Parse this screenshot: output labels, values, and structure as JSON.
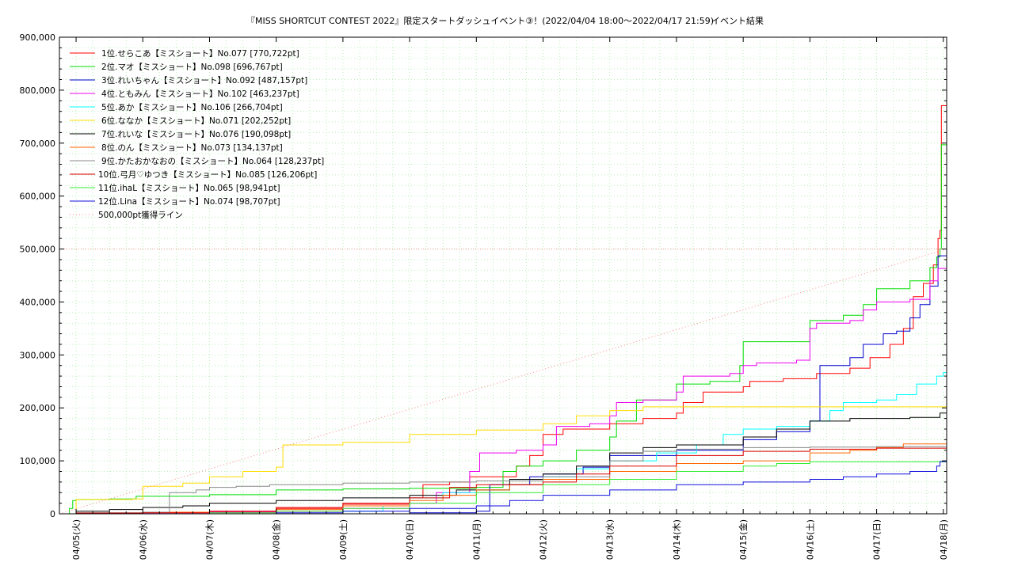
{
  "chart_data": {
    "type": "line",
    "title": "『MISS SHORTCUT CONTEST 2022』限定スタートダッシュイベント③！(2022/04/04 18:00〜2022/04/17 21:59)",
    "title_suffix": "イベント結果",
    "xlabel": "",
    "ylabel": "",
    "x_ticks": [
      "04/05(火)",
      "04/06(水)",
      "04/07(木)",
      "04/08(金)",
      "04/09(土)",
      "04/10(日)",
      "04/11(月)",
      "04/12(火)",
      "04/13(水)",
      "04/14(木)",
      "04/15(金)",
      "04/16(土)",
      "04/17(日)",
      "04/18(月)"
    ],
    "xlim_days": [
      -0.25,
      13.05
    ],
    "ylim": [
      0,
      900000
    ],
    "y_ticks": [
      "0",
      "100,000",
      "200,000",
      "300,000",
      "400,000",
      "500,000",
      "600,000",
      "700,000",
      "800,000",
      "900,000"
    ],
    "y_tick_values": [
      0,
      100000,
      200000,
      300000,
      400000,
      500000,
      600000,
      700000,
      800000,
      900000
    ],
    "grid": true,
    "legend_position": "top-left",
    "series": [
      {
        "name": "1位.せらこあ【ミスショート】No.077 [770,722pt]",
        "color": "#ff0000",
        "points": [
          [
            -0.25,
            0
          ],
          [
            0,
            2000
          ],
          [
            1,
            3000
          ],
          [
            2,
            5000
          ],
          [
            3,
            10000
          ],
          [
            4,
            18000
          ],
          [
            5,
            30000
          ],
          [
            5.2,
            55000
          ],
          [
            5.6,
            60000
          ],
          [
            5.9,
            70000
          ],
          [
            6.5,
            70000
          ],
          [
            6.6,
            90000
          ],
          [
            6.8,
            110000
          ],
          [
            7,
            150000
          ],
          [
            7.3,
            160000
          ],
          [
            7.8,
            160000
          ],
          [
            8,
            170000
          ],
          [
            8.5,
            180000
          ],
          [
            9,
            190000
          ],
          [
            9.1,
            210000
          ],
          [
            9.4,
            230000
          ],
          [
            10,
            240000
          ],
          [
            10.1,
            250000
          ],
          [
            10.6,
            255000
          ],
          [
            11.1,
            265000
          ],
          [
            11.6,
            275000
          ],
          [
            11.9,
            295000
          ],
          [
            12.2,
            320000
          ],
          [
            12.4,
            350000
          ],
          [
            12.55,
            410000
          ],
          [
            12.7,
            435000
          ],
          [
            12.85,
            470000
          ],
          [
            12.92,
            520000
          ],
          [
            12.95,
            535000
          ],
          [
            12.97,
            770722
          ],
          [
            13.05,
            770722
          ]
        ]
      },
      {
        "name": "2位.マオ【ミスショート】No.098 [696,767pt]",
        "color": "#00dd00",
        "points": [
          [
            -0.25,
            0
          ],
          [
            -0.1,
            10000
          ],
          [
            -0.05,
            25000
          ],
          [
            0,
            27000
          ],
          [
            0.5,
            28000
          ],
          [
            0.9,
            33000
          ],
          [
            2,
            36000
          ],
          [
            3,
            45000
          ],
          [
            4,
            47000
          ],
          [
            5,
            48000
          ],
          [
            6,
            50000
          ],
          [
            6.4,
            80000
          ],
          [
            6.6,
            90000
          ],
          [
            7,
            100000
          ],
          [
            7.5,
            120000
          ],
          [
            8,
            145000
          ],
          [
            8.1,
            175000
          ],
          [
            8.4,
            215000
          ],
          [
            9,
            245000
          ],
          [
            9.5,
            250000
          ],
          [
            9.95,
            280000
          ],
          [
            10,
            325000
          ],
          [
            10.9,
            325000
          ],
          [
            11,
            365000
          ],
          [
            11.5,
            375000
          ],
          [
            11.8,
            395000
          ],
          [
            12,
            425000
          ],
          [
            12.5,
            440000
          ],
          [
            12.8,
            465000
          ],
          [
            12.9,
            485000
          ],
          [
            12.95,
            500000
          ],
          [
            12.97,
            696767
          ],
          [
            13.05,
            696767
          ]
        ]
      },
      {
        "name": "3位.れいちゃん【ミスショート】No.092 [487,157pt]",
        "color": "#0000cc",
        "points": [
          [
            -0.25,
            0
          ],
          [
            0,
            0
          ],
          [
            5,
            2000
          ],
          [
            6,
            5000
          ],
          [
            6.2,
            55000
          ],
          [
            6.8,
            70000
          ],
          [
            7,
            75000
          ],
          [
            7.6,
            88000
          ],
          [
            8,
            110000
          ],
          [
            9,
            120000
          ],
          [
            10,
            140000
          ],
          [
            10.5,
            155000
          ],
          [
            11,
            175000
          ],
          [
            11.15,
            280000
          ],
          [
            11.6,
            295000
          ],
          [
            11.8,
            320000
          ],
          [
            12.1,
            340000
          ],
          [
            12.3,
            345000
          ],
          [
            12.5,
            370000
          ],
          [
            12.65,
            395000
          ],
          [
            12.8,
            430000
          ],
          [
            12.92,
            487157
          ],
          [
            13.05,
            487157
          ]
        ]
      },
      {
        "name": "4位.ともみん【ミスショート】No.102 [463,237pt]",
        "color": "#ee00ee",
        "points": [
          [
            -0.25,
            0
          ],
          [
            0,
            0
          ],
          [
            1,
            2000
          ],
          [
            2,
            3000
          ],
          [
            3,
            5000
          ],
          [
            4,
            10000
          ],
          [
            5,
            20000
          ],
          [
            5.4,
            40000
          ],
          [
            5.9,
            80000
          ],
          [
            6.05,
            115000
          ],
          [
            6.6,
            120000
          ],
          [
            7,
            130000
          ],
          [
            7.2,
            165000
          ],
          [
            7.7,
            170000
          ],
          [
            8,
            185000
          ],
          [
            8.1,
            210000
          ],
          [
            8.5,
            215000
          ],
          [
            9,
            230000
          ],
          [
            9.1,
            260000
          ],
          [
            9.8,
            265000
          ],
          [
            10,
            280000
          ],
          [
            10.2,
            285000
          ],
          [
            10.8,
            290000
          ],
          [
            11,
            350000
          ],
          [
            11.1,
            360000
          ],
          [
            11.6,
            365000
          ],
          [
            11.8,
            385000
          ],
          [
            12,
            400000
          ],
          [
            12.5,
            405000
          ],
          [
            12.8,
            440000
          ],
          [
            12.92,
            463237
          ],
          [
            13.05,
            463237
          ]
        ]
      },
      {
        "name": "5位.あか【ミスショート】No.106 [266,704pt]",
        "color": "#00ffff",
        "points": [
          [
            -0.25,
            0
          ],
          [
            0,
            0
          ],
          [
            4,
            5000
          ],
          [
            4.6,
            15000
          ],
          [
            5,
            30000
          ],
          [
            5.5,
            40000
          ],
          [
            6,
            45000
          ],
          [
            6.5,
            55000
          ],
          [
            7,
            70000
          ],
          [
            7.5,
            85000
          ],
          [
            8,
            100000
          ],
          [
            8.7,
            115000
          ],
          [
            9.3,
            130000
          ],
          [
            9.7,
            150000
          ],
          [
            10,
            160000
          ],
          [
            10.5,
            165000
          ],
          [
            11,
            175000
          ],
          [
            11.3,
            195000
          ],
          [
            11.5,
            210000
          ],
          [
            12,
            215000
          ],
          [
            12.3,
            225000
          ],
          [
            12.6,
            245000
          ],
          [
            12.9,
            260000
          ],
          [
            13,
            266704
          ],
          [
            13.05,
            266704
          ]
        ]
      },
      {
        "name": "6位.ななか【ミスショート】No.071 [202,252pt]",
        "color": "#ffdd00",
        "points": [
          [
            -0.25,
            0
          ],
          [
            0,
            27000
          ],
          [
            0.85,
            28000
          ],
          [
            1,
            52000
          ],
          [
            1.6,
            58000
          ],
          [
            2,
            70000
          ],
          [
            2.5,
            80000
          ],
          [
            3,
            88000
          ],
          [
            3.1,
            130000
          ],
          [
            3.6,
            130000
          ],
          [
            4,
            135000
          ],
          [
            4.9,
            135000
          ],
          [
            5,
            150000
          ],
          [
            6,
            158000
          ],
          [
            7,
            170000
          ],
          [
            7.5,
            185000
          ],
          [
            8,
            195000
          ],
          [
            8.5,
            202000
          ],
          [
            13.05,
            202252
          ]
        ]
      },
      {
        "name": "7位.れいな【ミスショート】No.076 [190,098pt]",
        "color": "#000000",
        "points": [
          [
            -0.25,
            0
          ],
          [
            0,
            5000
          ],
          [
            0.5,
            8000
          ],
          [
            1,
            12000
          ],
          [
            1.6,
            15000
          ],
          [
            2,
            20000
          ],
          [
            3,
            25000
          ],
          [
            4,
            30000
          ],
          [
            5,
            35000
          ],
          [
            5.7,
            45000
          ],
          [
            6.5,
            65000
          ],
          [
            7,
            75000
          ],
          [
            7.5,
            90000
          ],
          [
            8,
            115000
          ],
          [
            8.5,
            125000
          ],
          [
            9,
            130000
          ],
          [
            10,
            145000
          ],
          [
            10.5,
            160000
          ],
          [
            11,
            175000
          ],
          [
            11.6,
            180000
          ],
          [
            12.5,
            182000
          ],
          [
            12.95,
            190098
          ],
          [
            13.05,
            190098
          ]
        ]
      },
      {
        "name": "8位.のん【ミスショート】No.073 [134,137pt]",
        "color": "#ff6600",
        "points": [
          [
            -0.25,
            0
          ],
          [
            0,
            1000
          ],
          [
            1,
            3000
          ],
          [
            2,
            5000
          ],
          [
            3,
            8000
          ],
          [
            4,
            15000
          ],
          [
            5,
            25000
          ],
          [
            5.5,
            35000
          ],
          [
            6,
            45000
          ],
          [
            6.5,
            55000
          ],
          [
            7,
            65000
          ],
          [
            8,
            80000
          ],
          [
            9,
            95000
          ],
          [
            10,
            100000
          ],
          [
            11,
            115000
          ],
          [
            11.6,
            120000
          ],
          [
            12,
            125000
          ],
          [
            12.4,
            132000
          ],
          [
            13.05,
            134137
          ]
        ]
      },
      {
        "name": "9位.かたおかなおの【ミスショート】No.064 [128,237pt]",
        "color": "#888888",
        "points": [
          [
            -0.25,
            0
          ],
          [
            0,
            2000
          ],
          [
            1,
            3000
          ],
          [
            1.4,
            40000
          ],
          [
            1.8,
            45000
          ],
          [
            2,
            50000
          ],
          [
            2.4,
            52000
          ],
          [
            2.9,
            55000
          ],
          [
            4,
            58000
          ],
          [
            5,
            60000
          ],
          [
            6,
            62000
          ],
          [
            7,
            70000
          ],
          [
            8,
            100000
          ],
          [
            8.5,
            118000
          ],
          [
            9,
            122000
          ],
          [
            10,
            125000
          ],
          [
            11,
            126000
          ],
          [
            12,
            127000
          ],
          [
            13.05,
            128237
          ]
        ]
      },
      {
        "name": "10位.弓月♡ゆつき【ミスショート】No.085 [126,206pt]",
        "color": "#dd0000",
        "points": [
          [
            -0.25,
            0
          ],
          [
            0,
            1000
          ],
          [
            1,
            2000
          ],
          [
            2,
            5000
          ],
          [
            3,
            12000
          ],
          [
            4,
            20000
          ],
          [
            5,
            30000
          ],
          [
            5.6,
            50000
          ],
          [
            6,
            55000
          ],
          [
            7,
            60000
          ],
          [
            7.5,
            75000
          ],
          [
            8,
            90000
          ],
          [
            9,
            110000
          ],
          [
            10,
            118000
          ],
          [
            11,
            122000
          ],
          [
            12,
            124000
          ],
          [
            13.05,
            126206
          ]
        ]
      },
      {
        "name": "11位.ihaL【ミスショート】No.065 [98,941pt]",
        "color": "#33ee33",
        "points": [
          [
            -0.25,
            0
          ],
          [
            0,
            0
          ],
          [
            2,
            2000
          ],
          [
            3,
            5000
          ],
          [
            4,
            10000
          ],
          [
            5,
            20000
          ],
          [
            6,
            40000
          ],
          [
            7,
            55000
          ],
          [
            8,
            65000
          ],
          [
            9,
            80000
          ],
          [
            10,
            90000
          ],
          [
            10.5,
            95000
          ],
          [
            11,
            98000
          ],
          [
            13.05,
            98941
          ]
        ]
      },
      {
        "name": "12位.Lina【ミスショート】No.074 [98,707pt]",
        "color": "#1111dd",
        "points": [
          [
            -0.25,
            0
          ],
          [
            0,
            0
          ],
          [
            3,
            2000
          ],
          [
            4,
            5000
          ],
          [
            5,
            10000
          ],
          [
            6,
            15000
          ],
          [
            6.5,
            25000
          ],
          [
            7,
            35000
          ],
          [
            8,
            45000
          ],
          [
            9,
            55000
          ],
          [
            10,
            60000
          ],
          [
            11,
            65000
          ],
          [
            11.5,
            70000
          ],
          [
            12,
            75000
          ],
          [
            12.5,
            80000
          ],
          [
            12.9,
            90000
          ],
          [
            12.95,
            98707
          ],
          [
            13.05,
            98707
          ]
        ]
      },
      {
        "name": "500,000pt獲得ライン",
        "color": "#ff8888",
        "dotted": true,
        "points": [
          [
            -0.25,
            0
          ],
          [
            13.05,
            500000
          ]
        ]
      }
    ]
  }
}
